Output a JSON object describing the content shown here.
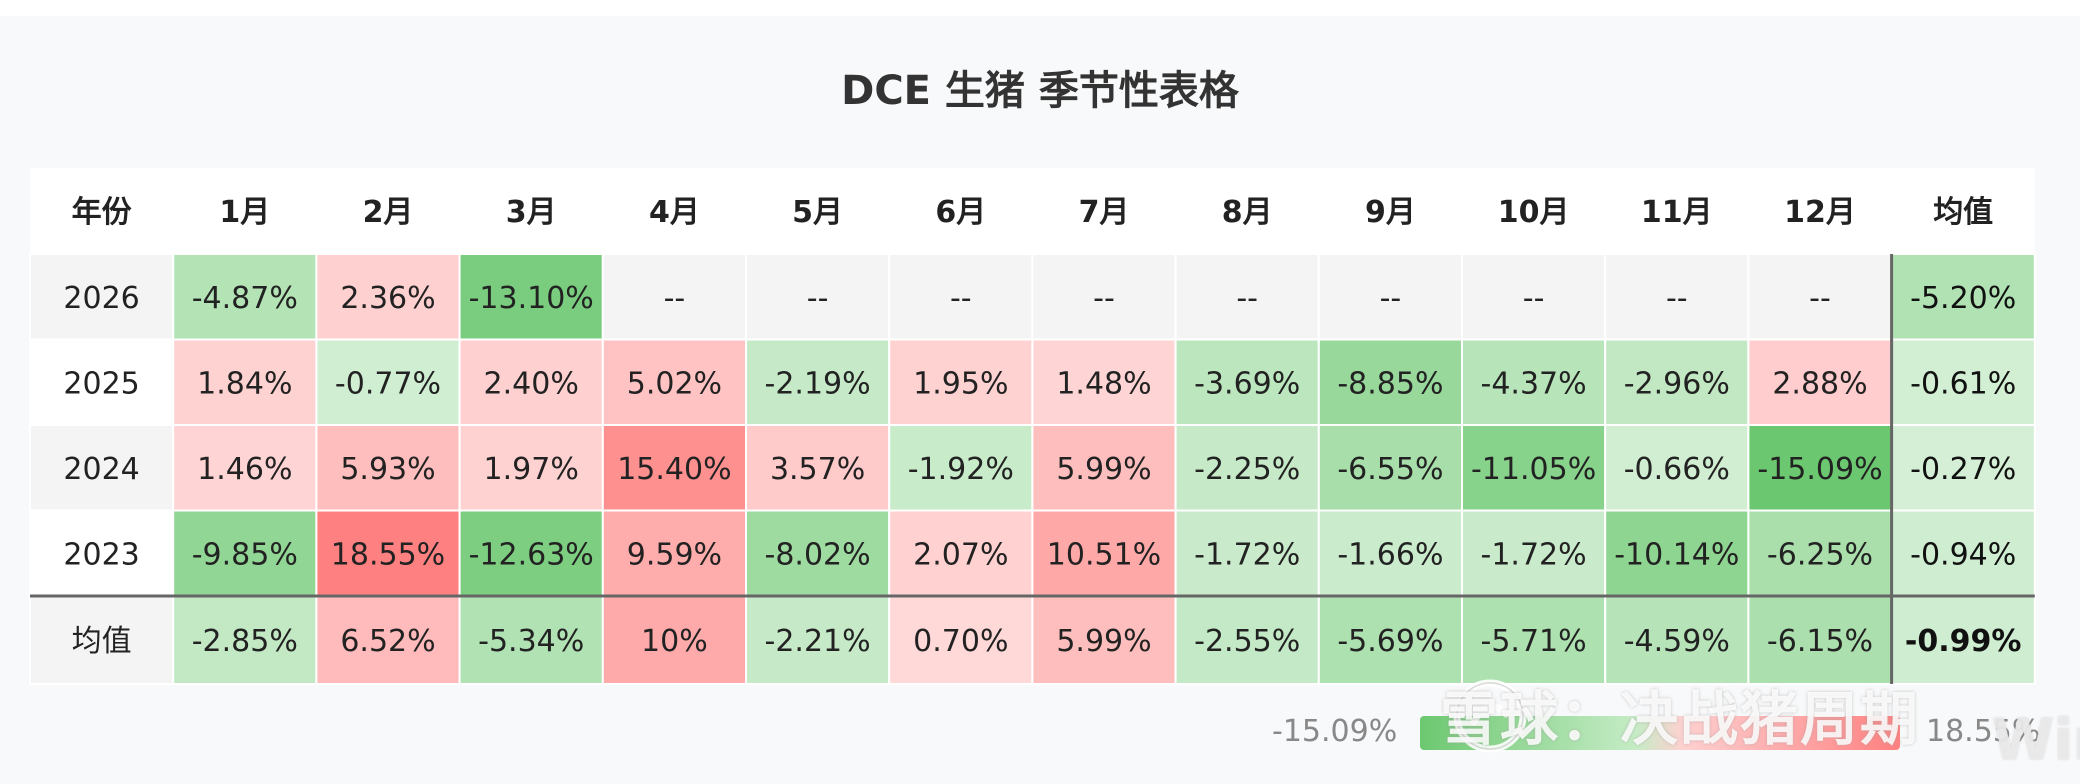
{
  "chart_data": {
    "type": "table",
    "title": "DCE 生猪 季节性表格",
    "header": {
      "year": "年份",
      "months": [
        "1月",
        "2月",
        "3月",
        "4月",
        "5月",
        "6月",
        "7月",
        "8月",
        "9月",
        "10月",
        "11月",
        "12月"
      ],
      "avg": "均值"
    },
    "rows": [
      {
        "year": "2026",
        "values": [
          "-4.87%",
          "2.36%",
          "-13.10%",
          "--",
          "--",
          "--",
          "--",
          "--",
          "--",
          "--",
          "--",
          "--"
        ],
        "avg": "-5.20%"
      },
      {
        "year": "2025",
        "values": [
          "1.84%",
          "-0.77%",
          "2.40%",
          "5.02%",
          "-2.19%",
          "1.95%",
          "1.48%",
          "-3.69%",
          "-8.85%",
          "-4.37%",
          "-2.96%",
          "2.88%"
        ],
        "avg": "-0.61%"
      },
      {
        "year": "2024",
        "values": [
          "1.46%",
          "5.93%",
          "1.97%",
          "15.40%",
          "3.57%",
          "-1.92%",
          "5.99%",
          "-2.25%",
          "-6.55%",
          "-11.05%",
          "-0.66%",
          "-15.09%"
        ],
        "avg": "-0.27%"
      },
      {
        "year": "2023",
        "values": [
          "-9.85%",
          "18.55%",
          "-12.63%",
          "9.59%",
          "-8.02%",
          "2.07%",
          "10.51%",
          "-1.72%",
          "-1.66%",
          "-1.72%",
          "-10.14%",
          "-6.25%"
        ],
        "avg": "-0.94%"
      }
    ],
    "mean_row": {
      "label": "均值",
      "values": [
        "-2.85%",
        "6.52%",
        "-5.34%",
        "10%",
        "-2.21%",
        "0.70%",
        "5.99%",
        "-2.55%",
        "-5.69%",
        "-5.71%",
        "-4.59%",
        "-6.15%"
      ],
      "avg": "-0.99%"
    },
    "color_scale": {
      "min_label": "-15.09%",
      "max_label": "18.55%",
      "negative_color": "#6cc870",
      "positive_color": "#ff8080",
      "empty_color": "#f4f4f4"
    }
  },
  "watermark": {
    "text": "雪球：决战猪周期",
    "brand": "Wind"
  }
}
